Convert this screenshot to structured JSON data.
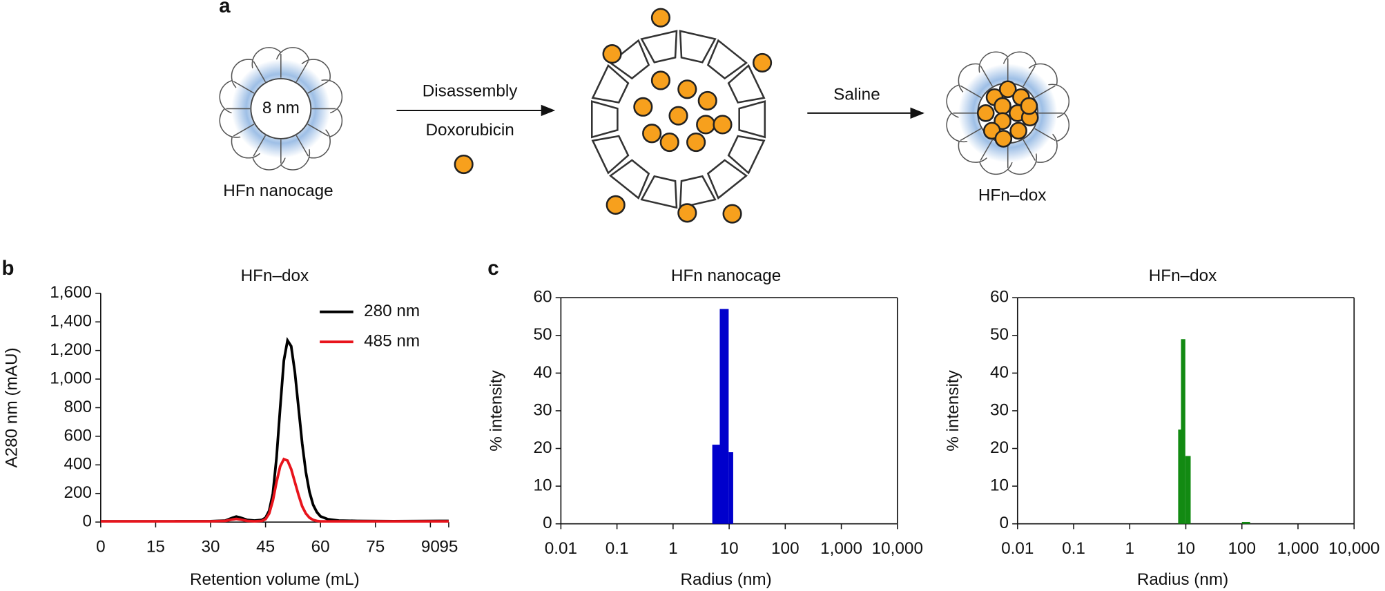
{
  "panels": [
    "a",
    "b",
    "c"
  ],
  "diagram": {
    "core_size": "8 nm",
    "start_label": "HFn nanocage",
    "step1_top": "Disassembly",
    "step1_bottom": "Doxorubicin",
    "step2": "Saline",
    "end_label": "HFn–dox"
  },
  "chart_data": [
    {
      "type": "line",
      "title": "HFn–dox",
      "x_label": "Retention volume (mL)",
      "y_label": "A280 nm (mAU)",
      "x": [
        0,
        10,
        20,
        30,
        34,
        36,
        37,
        38,
        40,
        42,
        44,
        45,
        46,
        47,
        48,
        49,
        50,
        51,
        52,
        53,
        54,
        55,
        56,
        57,
        58,
        59,
        60,
        62,
        65,
        70,
        80,
        95
      ],
      "series": [
        {
          "name": "280 nm",
          "color": "#000000",
          "values": [
            5,
            5,
            5,
            6,
            10,
            30,
            38,
            32,
            15,
            10,
            15,
            30,
            80,
            200,
            450,
            800,
            1130,
            1270,
            1230,
            1050,
            800,
            550,
            350,
            210,
            120,
            70,
            40,
            20,
            10,
            8,
            6,
            8
          ]
        },
        {
          "name": "485 nm",
          "color": "#e8141c",
          "values": [
            5,
            5,
            5,
            5,
            8,
            18,
            22,
            18,
            8,
            5,
            8,
            20,
            60,
            150,
            280,
            390,
            440,
            430,
            370,
            280,
            190,
            110,
            60,
            30,
            15,
            8,
            5,
            5,
            5,
            5,
            5,
            5
          ]
        }
      ],
      "xlim": [
        0,
        95
      ],
      "xticks": [
        0,
        15,
        30,
        45,
        60,
        75,
        90,
        95
      ],
      "ylim": [
        0,
        1600
      ],
      "yticks": [
        0,
        200,
        400,
        600,
        800,
        {
          "value": 1000,
          "label": "1,000"
        },
        {
          "value": 1200,
          "label": "1,200"
        },
        {
          "value": 1400,
          "label": "1,400"
        },
        {
          "value": 1600,
          "label": "1,600"
        }
      ],
      "legend": "upper right",
      "frame": false
    },
    {
      "type": "histogram",
      "title": "HFn nanocage",
      "x_label": "Radius (nm)",
      "y_label": "% intensity",
      "bins": [
        5,
        6.8,
        9.8,
        11.8
      ],
      "counts": [
        21,
        57,
        19
      ],
      "color": "#0000cc",
      "log_x": true,
      "xlim": [
        0.01,
        10000
      ],
      "xticks": [
        0.01,
        0.1,
        1,
        10,
        100,
        {
          "value": 1000,
          "label": "1,000"
        },
        {
          "value": 10000,
          "label": "10,000"
        }
      ],
      "ylim": [
        0,
        60
      ],
      "yticks": [
        0,
        10,
        20,
        30,
        40,
        50,
        60
      ],
      "frame": true
    },
    {
      "type": "histogram",
      "title": "HFn–dox",
      "x_label": "Radius (nm)",
      "y_label": "% intensity",
      "bins": [
        7.3,
        8.2,
        9.8,
        12.2,
        100,
        140
      ],
      "counts": [
        25,
        49,
        18,
        0,
        0.5
      ],
      "color": "#128a12",
      "log_x": true,
      "xlim": [
        0.01,
        10000
      ],
      "xticks": [
        0.01,
        0.1,
        1,
        10,
        100,
        {
          "value": 1000,
          "label": "1,000"
        },
        {
          "value": 10000,
          "label": "10,000"
        }
      ],
      "ylim": [
        0,
        60
      ],
      "yticks": [
        0,
        10,
        20,
        30,
        40,
        50,
        60
      ],
      "frame": true
    }
  ]
}
